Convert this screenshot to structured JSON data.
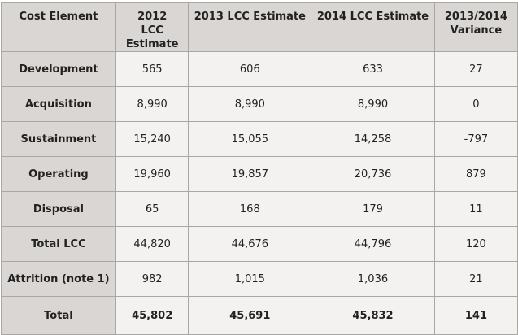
{
  "headers": [
    "Cost Element",
    "2012 LCC Estimate",
    "2013 LCC Estimate",
    "2014 LCC Estimate",
    "2013/2014 Variance"
  ],
  "rows": [
    [
      "Development",
      "565",
      "606",
      "633",
      "27"
    ],
    [
      "Acquisition",
      "8,990",
      "8,990",
      "8,990",
      "0"
    ],
    [
      "Sustainment",
      "15,240",
      "15,055",
      "14,258",
      "-797"
    ],
    [
      "Operating",
      "19,960",
      "19,857",
      "20,736",
      "879"
    ],
    [
      "Disposal",
      "65",
      "168",
      "179",
      "11"
    ],
    [
      "Total LCC",
      "44,820",
      "44,676",
      "44,796",
      "120"
    ],
    [
      "Attrition (note 1)",
      "982",
      "1,015",
      "1,036",
      "21"
    ],
    [
      "Total",
      "45,802",
      "45,691",
      "45,832",
      "141"
    ]
  ]
}
